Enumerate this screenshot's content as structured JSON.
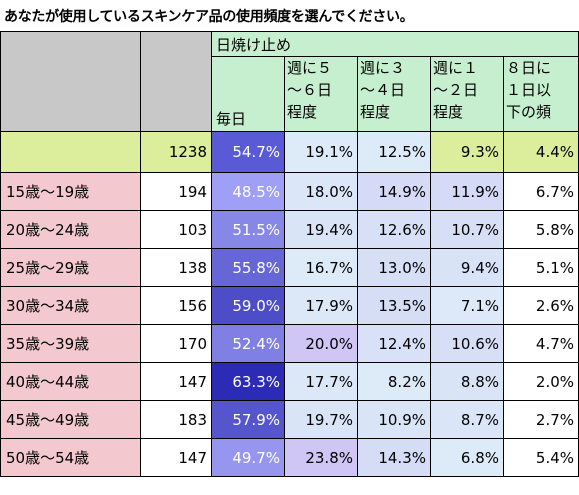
{
  "title": "あなたが使用しているスキンケア品の使用頻度を選んでください。",
  "header": {
    "group_label": "日焼け止め",
    "columns": [
      {
        "lines": [
          "毎日"
        ],
        "placement": "bottom"
      },
      {
        "lines": [
          "週に５",
          "～６日",
          "程度"
        ],
        "placement": "top"
      },
      {
        "lines": [
          "週に３",
          "～４日",
          "程度"
        ],
        "placement": "top"
      },
      {
        "lines": [
          "週に１",
          "～２日",
          "程度"
        ],
        "placement": "top"
      },
      {
        "lines": [
          "８日に",
          "１日以",
          "下の頻"
        ],
        "placement": "top"
      }
    ]
  },
  "total_row": {
    "label": "",
    "n": "1238",
    "values": [
      "54.7%",
      "19.1%",
      "12.5%",
      "9.3%",
      "4.4%"
    ]
  },
  "rows": [
    {
      "label": "15歳～19歳",
      "n": "194",
      "values": [
        "48.5%",
        "18.0%",
        "14.9%",
        "11.9%",
        "6.7%"
      ]
    },
    {
      "label": "20歳～24歳",
      "n": "103",
      "values": [
        "51.5%",
        "19.4%",
        "12.6%",
        "10.7%",
        "5.8%"
      ]
    },
    {
      "label": "25歳～29歳",
      "n": "138",
      "values": [
        "55.8%",
        "16.7%",
        "13.0%",
        "9.4%",
        "5.1%"
      ]
    },
    {
      "label": "30歳～34歳",
      "n": "156",
      "values": [
        "59.0%",
        "17.9%",
        "13.5%",
        "7.1%",
        "2.6%"
      ]
    },
    {
      "label": "35歳～39歳",
      "n": "170",
      "values": [
        "52.4%",
        "20.0%",
        "12.4%",
        "10.6%",
        "4.7%"
      ]
    },
    {
      "label": "40歳～44歳",
      "n": "147",
      "values": [
        "63.3%",
        "17.7%",
        "8.2%",
        "8.8%",
        "2.0%"
      ]
    },
    {
      "label": "45歳～49歳",
      "n": "183",
      "values": [
        "57.9%",
        "19.7%",
        "10.9%",
        "8.7%",
        "2.7%"
      ]
    },
    {
      "label": "50歳～54歳",
      "n": "147",
      "values": [
        "49.7%",
        "23.8%",
        "14.3%",
        "6.8%",
        "5.4%"
      ]
    }
  ],
  "heatmap": {
    "column_ranges": [
      [
        48.5,
        63.3
      ],
      [
        16.7,
        23.8
      ],
      [
        8.2,
        14.9
      ],
      [
        6.8,
        11.9
      ],
      [
        2.0,
        6.7
      ]
    ],
    "daily_palette": {
      "light": "#9f9ff5",
      "dark": "#2b2bb5"
    },
    "mid_palette": {
      "light": "#ddeaf8",
      "dark": "#c5c0f2"
    },
    "highlight_cells": [
      [
        4,
        1
      ],
      [
        7,
        1
      ]
    ],
    "highlight_color": "#cfc6f5",
    "total_row_colors": [
      "#5a5ad6",
      "#ddeaf8",
      "#ddeaf8",
      "#dcee9c",
      "#dcee9c"
    ],
    "last_column_color": "#ffffff"
  }
}
